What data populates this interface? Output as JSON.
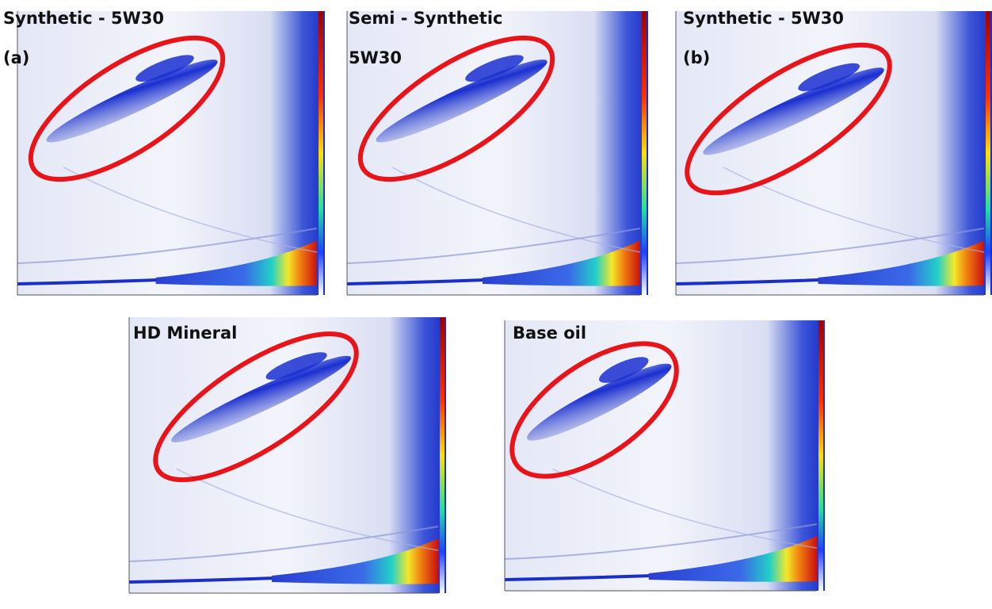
{
  "panels": [
    {
      "label": [
        "Synthetic - 5W30",
        "(a)"
      ]
    },
    {
      "label": [
        "Semi - Synthetic",
        "5W30"
      ]
    },
    {
      "label": [
        "Synthetic - 5W30",
        "(b)"
      ]
    },
    {
      "label": [
        "HD Mineral"
      ]
    },
    {
      "label": [
        "Base oil"
      ]
    }
  ]
}
